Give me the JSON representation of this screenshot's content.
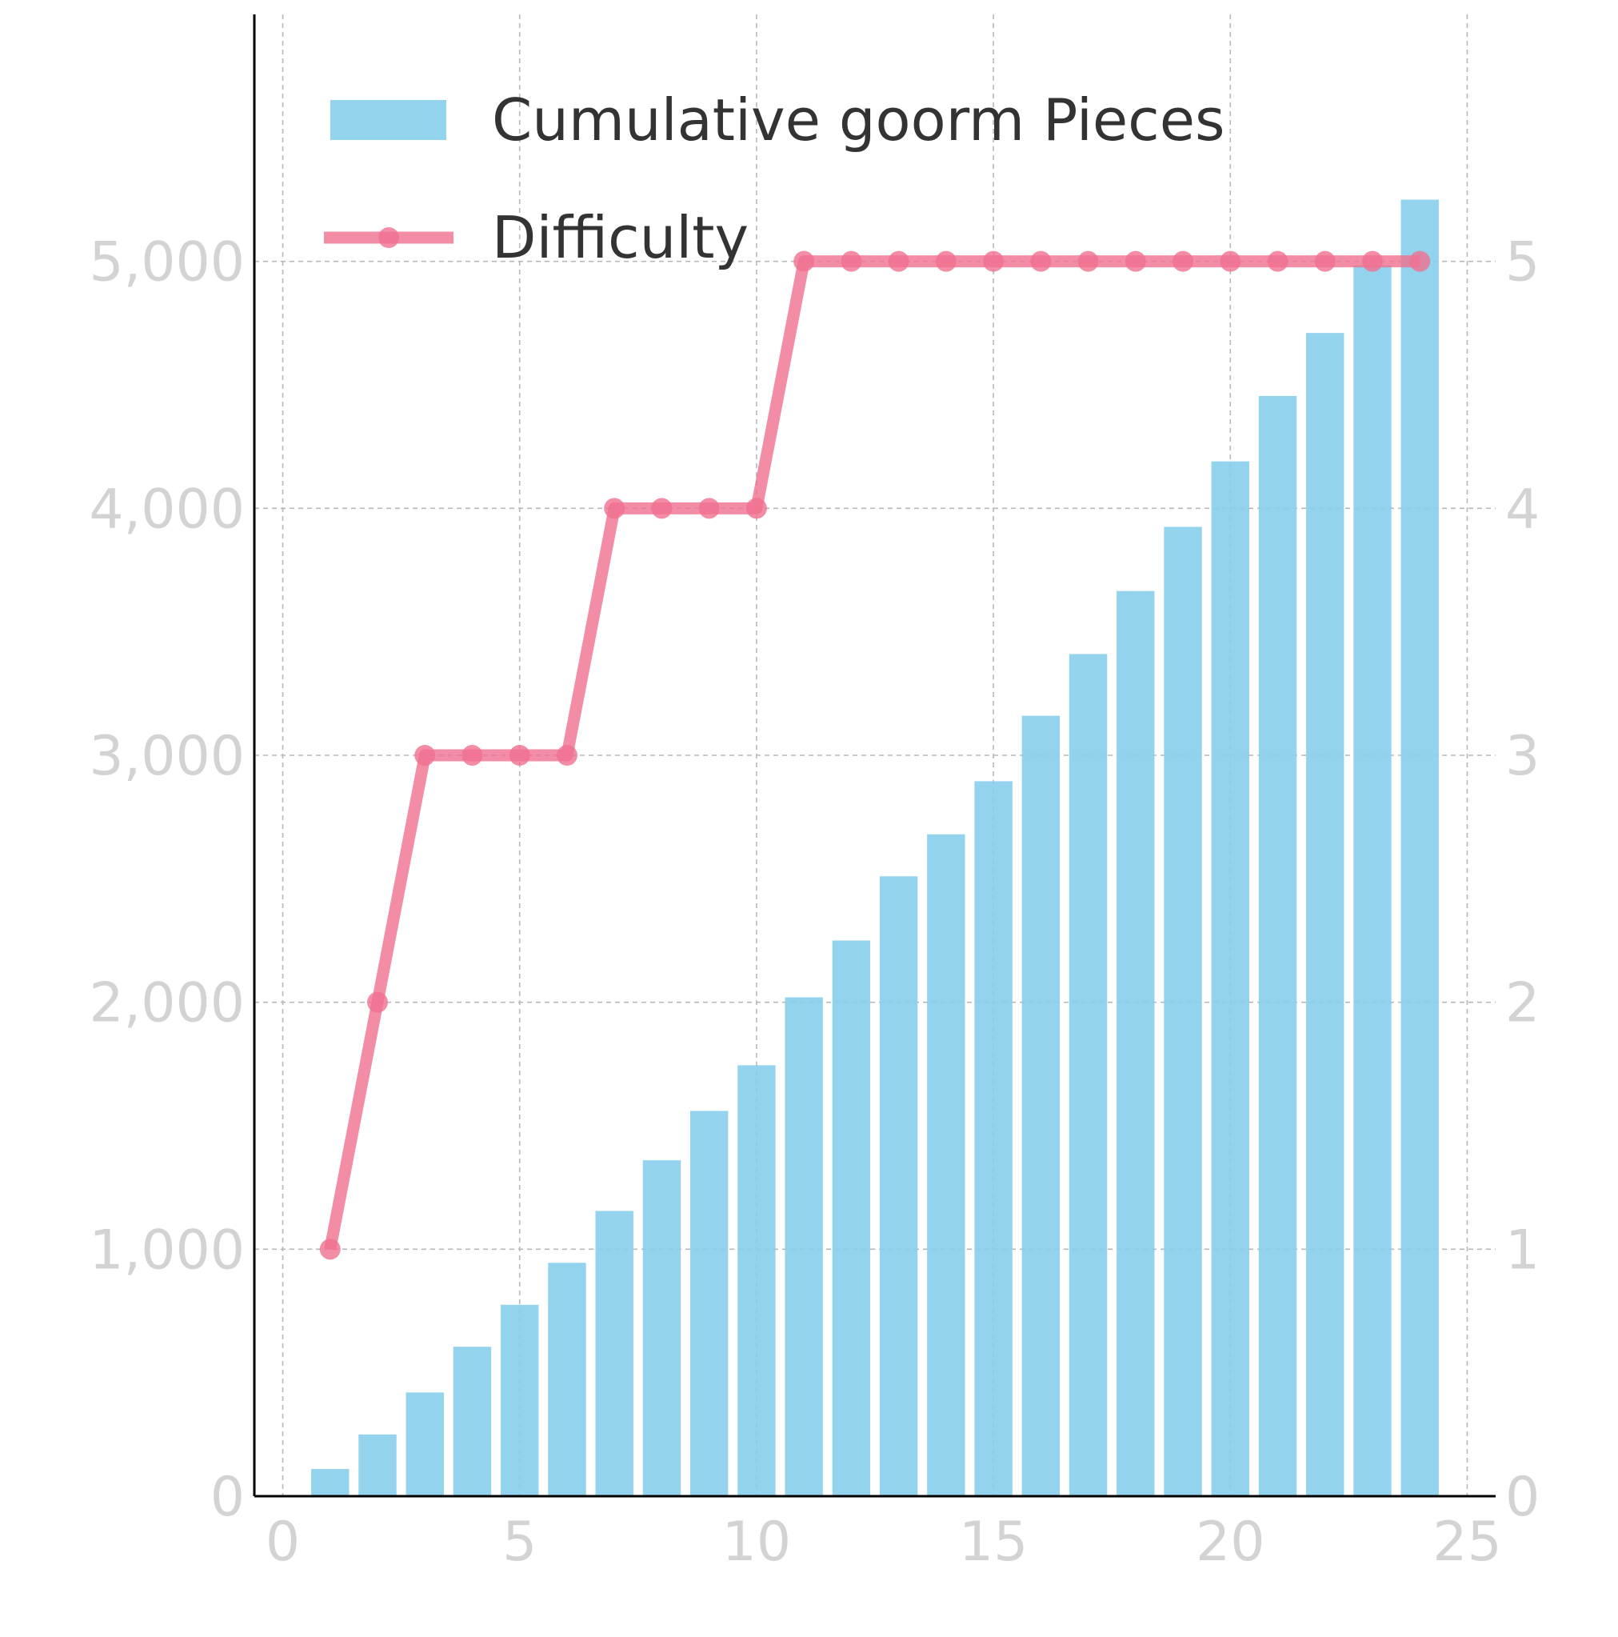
{
  "chart_data": {
    "type": "bar",
    "x": [
      1,
      2,
      3,
      4,
      5,
      6,
      7,
      8,
      9,
      10,
      11,
      12,
      13,
      14,
      15,
      16,
      17,
      18,
      19,
      20,
      21,
      22,
      23,
      24
    ],
    "series": [
      {
        "name": "Cumulative goorm Pieces",
        "type": "bar",
        "axis": "left",
        "color": "#87CEEB",
        "values": [
          110,
          250,
          420,
          605,
          775,
          945,
          1155,
          1360,
          1560,
          1745,
          2020,
          2250,
          2510,
          2680,
          2895,
          3160,
          3410,
          3665,
          3925,
          4190,
          4455,
          4710,
          4985,
          5250
        ]
      },
      {
        "name": "Difficulty",
        "type": "line",
        "axis": "right",
        "color": "#F07090",
        "marker": "circle",
        "values": [
          1,
          2,
          3,
          3,
          3,
          3,
          4,
          4,
          4,
          4,
          5,
          5,
          5,
          5,
          5,
          5,
          5,
          5,
          5,
          5,
          5,
          5,
          5,
          5
        ]
      }
    ],
    "xlim": [
      -0.6,
      25.6
    ],
    "ylim_left": [
      0,
      6000
    ],
    "ylim_right": [
      0,
      6
    ],
    "x_ticks": [
      "0",
      "5",
      "10",
      "15",
      "20",
      "25"
    ],
    "y_ticks_left": [
      "0",
      "1,000",
      "2,000",
      "3,000",
      "4,000",
      "5,000"
    ],
    "y_ticks_right": [
      "0",
      "1",
      "2",
      "3",
      "4",
      "5"
    ],
    "grid": true,
    "legend_position": "top-left",
    "title": "",
    "xlabel": "",
    "ylabel": ""
  }
}
